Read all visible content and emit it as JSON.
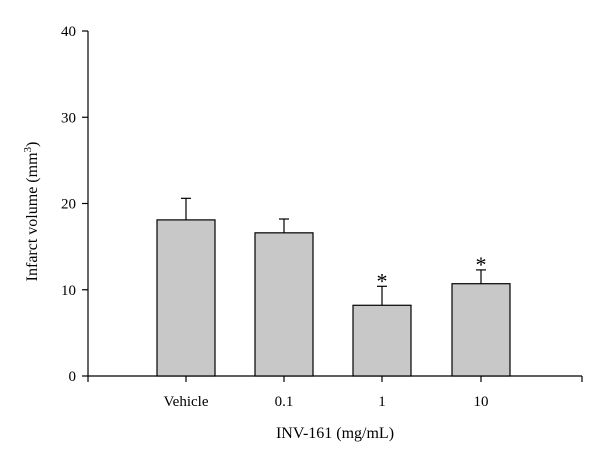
{
  "chart_data": {
    "type": "bar",
    "categories": [
      "Vehicle",
      "0.1",
      "1",
      "10"
    ],
    "values": [
      18.1,
      16.6,
      8.2,
      10.7
    ],
    "error_plus": [
      2.5,
      1.6,
      2.2,
      1.6
    ],
    "significance": [
      "",
      "",
      "*",
      "*"
    ],
    "xlabel": "INV-161 (mg/mL)",
    "ylabel_main": "Infarct volume (mm",
    "ylabel_sup": "3",
    "ylabel_end": ")",
    "ylim": [
      0,
      40
    ],
    "yticks": [
      "0",
      "10",
      "20",
      "30",
      "40"
    ],
    "bar_color": "#c8c8c8",
    "grid": false
  }
}
